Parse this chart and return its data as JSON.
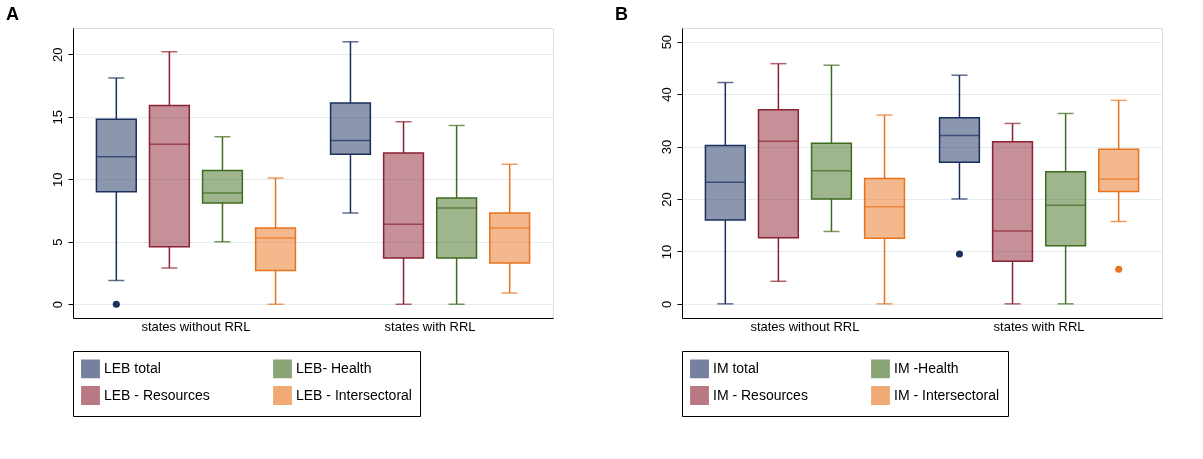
{
  "chart_data": [
    {
      "type": "box",
      "title": "A",
      "categories": [
        "states without RRL",
        "states with RRL"
      ],
      "ylim": [
        -1.1,
        22.1
      ],
      "yticks": [
        0,
        5,
        10,
        15,
        20
      ],
      "grid": "y",
      "legend": "bottom",
      "series": [
        {
          "name": "LEB total",
          "color": "#1a2f5e",
          "boxes": [
            {
              "low": 1.9,
              "q1": 9.0,
              "median": 11.8,
              "q3": 14.8,
              "high": 18.1,
              "outliers": [
                0
              ]
            },
            {
              "low": 7.3,
              "q1": 12.0,
              "median": 13.1,
              "q3": 16.1,
              "high": 21.0
            }
          ]
        },
        {
          "name": "LEB - Resources",
          "color": "#8b2131",
          "boxes": [
            {
              "low": 2.9,
              "q1": 4.6,
              "median": 12.8,
              "q3": 15.9,
              "high": 20.2
            },
            {
              "low": 0,
              "q1": 3.7,
              "median": 6.4,
              "q3": 12.1,
              "high": 14.6
            }
          ]
        },
        {
          "name": "LEB- Health",
          "color": "#3f6b1e",
          "boxes": [
            {
              "low": 5.0,
              "q1": 8.1,
              "median": 8.9,
              "q3": 10.7,
              "high": 13.4
            },
            {
              "low": 0,
              "q1": 3.7,
              "median": 7.7,
              "q3": 8.5,
              "high": 14.3
            }
          ]
        },
        {
          "name": "LEB - Intersectoral",
          "color": "#e8731c",
          "boxes": [
            {
              "low": 0,
              "q1": 2.7,
              "median": 5.3,
              "q3": 6.1,
              "high": 10.1
            },
            {
              "low": 0.9,
              "q1": 3.3,
              "median": 6.1,
              "q3": 7.3,
              "high": 11.2
            }
          ]
        }
      ]
    },
    {
      "type": "box",
      "title": "B",
      "categories": [
        "states without RRL",
        "states with RRL"
      ],
      "ylim": [
        -2.7,
        52.6
      ],
      "yticks": [
        0,
        10,
        20,
        30,
        40,
        50
      ],
      "grid": "y",
      "legend": "bottom",
      "series": [
        {
          "name": "IM total",
          "color": "#1a2f5e",
          "boxes": [
            {
              "low": 0,
              "q1": 16.0,
              "median": 23.2,
              "q3": 30.2,
              "high": 42.2
            },
            {
              "low": 20.0,
              "q1": 27.0,
              "median": 32.1,
              "q3": 35.5,
              "high": 43.6,
              "outliers": [
                9.5
              ]
            }
          ]
        },
        {
          "name": "IM - Resources",
          "color": "#8b2131",
          "boxes": [
            {
              "low": 4.3,
              "q1": 12.6,
              "median": 31.0,
              "q3": 37.0,
              "high": 45.8
            },
            {
              "low": 0,
              "q1": 8.1,
              "median": 13.9,
              "q3": 30.9,
              "high": 34.4
            }
          ]
        },
        {
          "name": "IM -Health",
          "color": "#3f6b1e",
          "boxes": [
            {
              "low": 13.8,
              "q1": 20.0,
              "median": 25.4,
              "q3": 30.6,
              "high": 45.5
            },
            {
              "low": 0,
              "q1": 11.1,
              "median": 18.8,
              "q3": 25.2,
              "high": 36.3
            }
          ]
        },
        {
          "name": "IM - Intersectoral",
          "color": "#e8731c",
          "boxes": [
            {
              "low": 0,
              "q1": 12.5,
              "median": 18.5,
              "q3": 23.9,
              "high": 36.0
            },
            {
              "low": 15.7,
              "q1": 21.4,
              "median": 23.8,
              "q3": 29.5,
              "high": 38.8,
              "outliers": [
                6.6
              ]
            }
          ]
        }
      ]
    }
  ]
}
